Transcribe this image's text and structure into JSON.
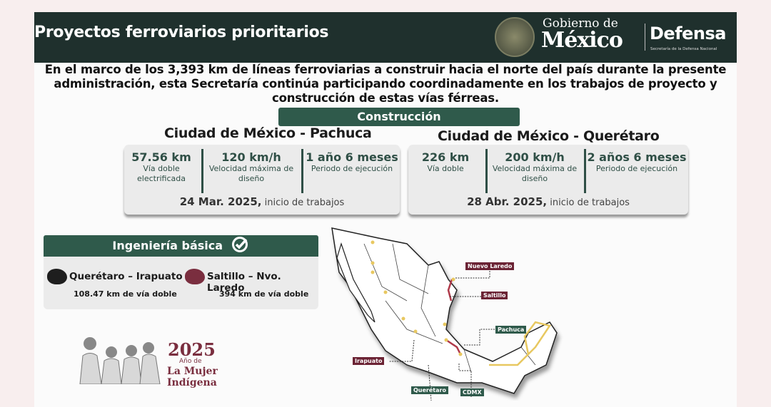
{
  "header": {
    "title": "Proyectos ferroviarios prioritarios",
    "gob_line1": "Gobierno de",
    "gob_line2": "México",
    "defensa": "Defensa",
    "defensa_sub": "Secretaría de la Defensa Nacional"
  },
  "intro": "En el marco de los 3,393 km de líneas ferroviarias a construir hacia el norte del país durante la presente administración, esta Secretaría continúa participando coordinadamente en los trabajos de proyecto y construcción de estas vías férreas.",
  "construccion": {
    "label": "Construcción",
    "routes": [
      {
        "name": "Ciudad de México - Pachuca",
        "stats": [
          {
            "value": "57.56 km",
            "label": "Vía doble electrificada"
          },
          {
            "value": "120 km/h",
            "label": "Velocidad máxima de diseño"
          },
          {
            "value": "1 año 6 meses",
            "label": "Periodo de ejecución"
          }
        ],
        "date": "24 Mar. 2025,",
        "date_suffix": "inicio de trabajos"
      },
      {
        "name": "Ciudad de México - Querétaro",
        "stats": [
          {
            "value": "226 km",
            "label": "Vía doble"
          },
          {
            "value": "200 km/h",
            "label": "Velocidad máxima de diseño"
          },
          {
            "value": "2 años 6 meses",
            "label": "Periodo de ejecución"
          }
        ],
        "date": "28 Abr. 2025,",
        "date_suffix": "inicio de trabajos"
      }
    ]
  },
  "ingenieria": {
    "label": "Ingeniería básica",
    "icon": "check-circle-icon",
    "items": [
      {
        "name": "Querétaro – Irapuato",
        "detail": "108.47 km de vía doble",
        "color": "#1e1e1e"
      },
      {
        "name": "Saltillo – Nvo. Laredo",
        "detail": "394 km de vía doble",
        "color": "#7a2e3f"
      }
    ]
  },
  "logo2025": {
    "year": "2025",
    "line1": "Año de",
    "line2": "La Mujer",
    "line3": "Indígena"
  },
  "map": {
    "labels": {
      "nuevo_laredo": "Nuevo Laredo",
      "saltillo": "Saltillo",
      "pachuca": "Pachuca",
      "irapuato": "Irapuato",
      "queretaro": "Querétaro",
      "cdmx": "CDMX"
    }
  },
  "colors": {
    "header": "#1f302d",
    "accent_green": "#2f5a4b",
    "accent_maroon": "#7a2e3f",
    "rail_yellow": "#e8c860"
  }
}
